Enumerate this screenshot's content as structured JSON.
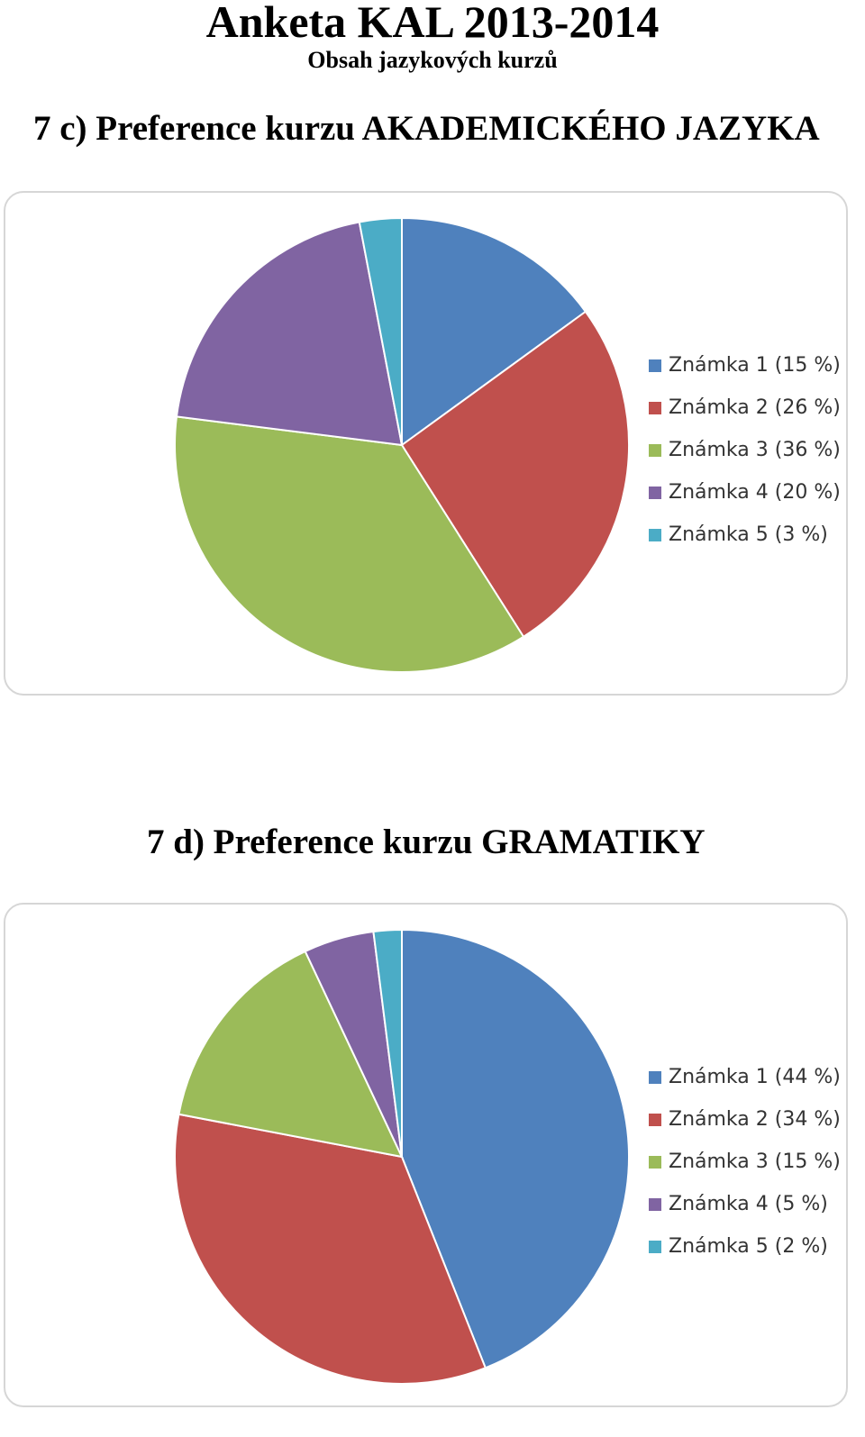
{
  "header": {
    "title": "Anketa KAL 2013-2014",
    "subtitle": "Obsah jazykových kurzů"
  },
  "chart_data": [
    {
      "type": "pie",
      "title": "7 c) Preference kurzu AKADEMICKÉHO JAZYKA",
      "categories": [
        "Známka 1 (15 %)",
        "Známka 2 (26 %)",
        "Známka 3 (36 %)",
        "Známka 4 (20 %)",
        "Známka 5 (3 %)"
      ],
      "values": [
        15,
        26,
        36,
        20,
        3
      ],
      "colors": [
        "#4f81bd",
        "#c0504d",
        "#9bbb59",
        "#8064a2",
        "#4bacc6"
      ],
      "legend": "right"
    },
    {
      "type": "pie",
      "title": "7 d) Preference kurzu GRAMATIKY",
      "categories": [
        "Známka 1 (44 %)",
        "Známka 2 (34 %)",
        "Známka 3 (15 %)",
        "Známka 4 (5 %)",
        "Známka 5 (2 %)"
      ],
      "values": [
        44,
        34,
        15,
        5,
        2
      ],
      "colors": [
        "#4f81bd",
        "#c0504d",
        "#9bbb59",
        "#8064a2",
        "#4bacc6"
      ],
      "legend": "right"
    }
  ]
}
